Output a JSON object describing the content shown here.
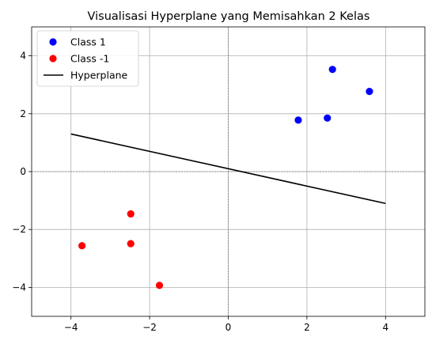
{
  "chart_data": {
    "type": "scatter",
    "title": "Visualisasi Hyperplane yang Memisahkan 2 Kelas",
    "xlabel": "",
    "ylabel": "",
    "xlim": [
      -5,
      5
    ],
    "ylim": [
      -5,
      5
    ],
    "xticks": [
      -4,
      -2,
      0,
      2,
      4
    ],
    "yticks": [
      -4,
      -2,
      0,
      2,
      4
    ],
    "grid": true,
    "zero_lines": true,
    "legend_position": "top-left",
    "series": [
      {
        "name": "Class 1",
        "kind": "scatter",
        "color": "#0000ff",
        "points": [
          [
            1.78,
            1.78
          ],
          [
            2.52,
            1.85
          ],
          [
            2.65,
            3.53
          ],
          [
            3.59,
            2.77
          ]
        ]
      },
      {
        "name": "Class -1",
        "kind": "scatter",
        "color": "#ff0000",
        "points": [
          [
            -3.72,
            -2.56
          ],
          [
            -2.48,
            -1.46
          ],
          [
            -2.48,
            -2.49
          ],
          [
            -1.75,
            -3.93
          ]
        ]
      },
      {
        "name": "Hyperplane",
        "kind": "line",
        "color": "#000000",
        "points": [
          [
            -4,
            1.3
          ],
          [
            4,
            -1.1
          ]
        ]
      }
    ]
  }
}
